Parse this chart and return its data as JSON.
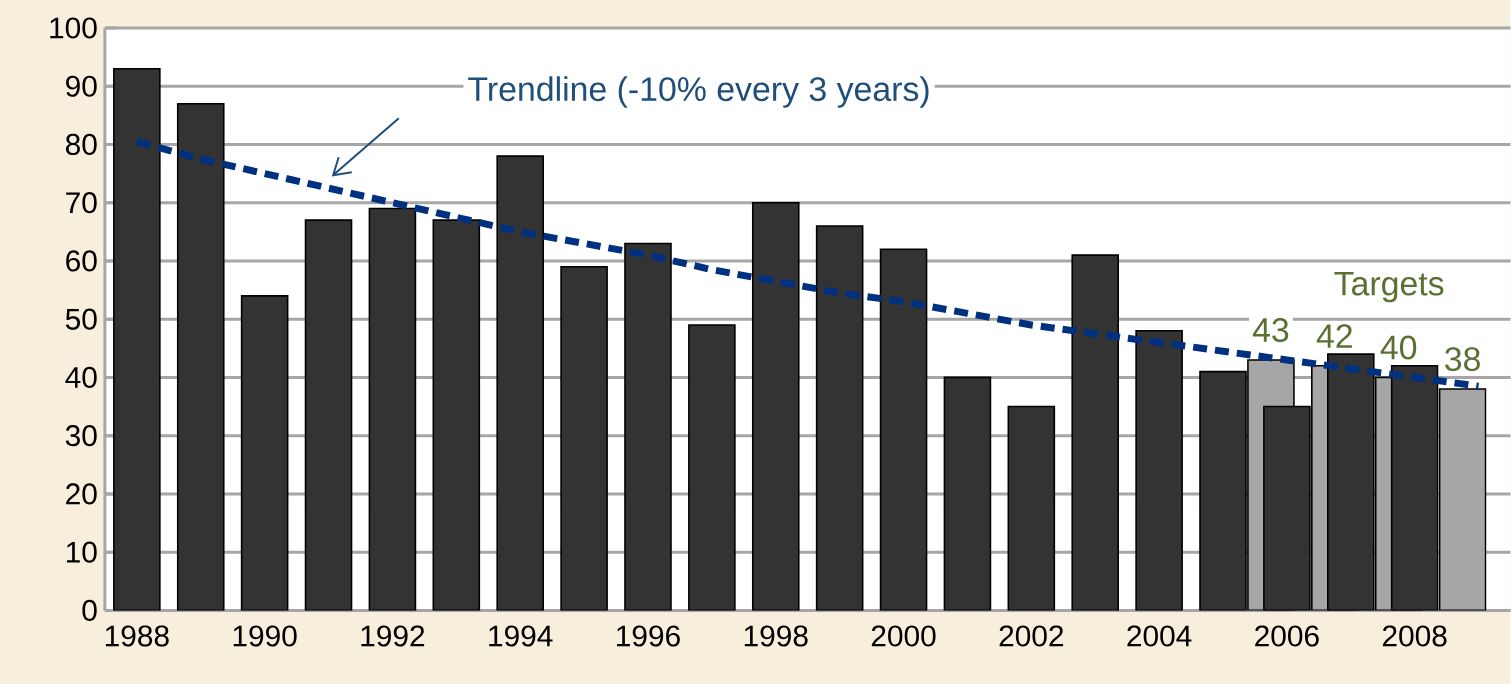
{
  "chart_data": {
    "type": "bar",
    "categories": [
      "1988",
      null,
      "1990",
      null,
      "1992",
      null,
      "1994",
      null,
      "1996",
      null,
      "1998",
      null,
      "2000",
      null,
      "2002",
      null,
      "2004",
      null,
      "2006",
      null,
      "2008",
      null
    ],
    "series": [
      {
        "color": "#a6a6a6",
        "values": [
          null,
          null,
          null,
          null,
          null,
          null,
          null,
          null,
          null,
          null,
          null,
          null,
          null,
          null,
          null,
          null,
          null,
          null,
          43,
          42,
          40,
          38
        ],
        "value_labels": [
          null,
          null,
          null,
          null,
          null,
          null,
          null,
          null,
          null,
          null,
          null,
          null,
          null,
          null,
          null,
          null,
          null,
          null,
          "43",
          "42",
          "40",
          "38"
        ]
      },
      {
        "color": "#333333",
        "values": [
          93,
          87,
          54,
          67,
          69,
          67,
          78,
          59,
          63,
          49,
          70,
          66,
          62,
          40,
          35,
          61,
          48,
          41,
          35,
          44,
          42,
          null
        ]
      },
      {
        "type": "line",
        "color": "#003080",
        "line_style": "dashed",
        "marker": "none",
        "values": [
          80.5,
          77.5,
          75,
          72.5,
          70,
          67.5,
          65,
          63,
          61,
          58.5,
          56.5,
          54.5,
          53,
          51,
          49,
          47.5,
          46,
          44.5,
          43,
          41.5,
          40,
          38.5
        ]
      }
    ],
    "ylim": [
      0,
      100
    ],
    "yticks": [
      0,
      10,
      20,
      30,
      40,
      50,
      60,
      70,
      80,
      90,
      100
    ],
    "grid": "y",
    "annotations": [
      "Trendline (-10% every 3 years)",
      "Targets"
    ]
  }
}
